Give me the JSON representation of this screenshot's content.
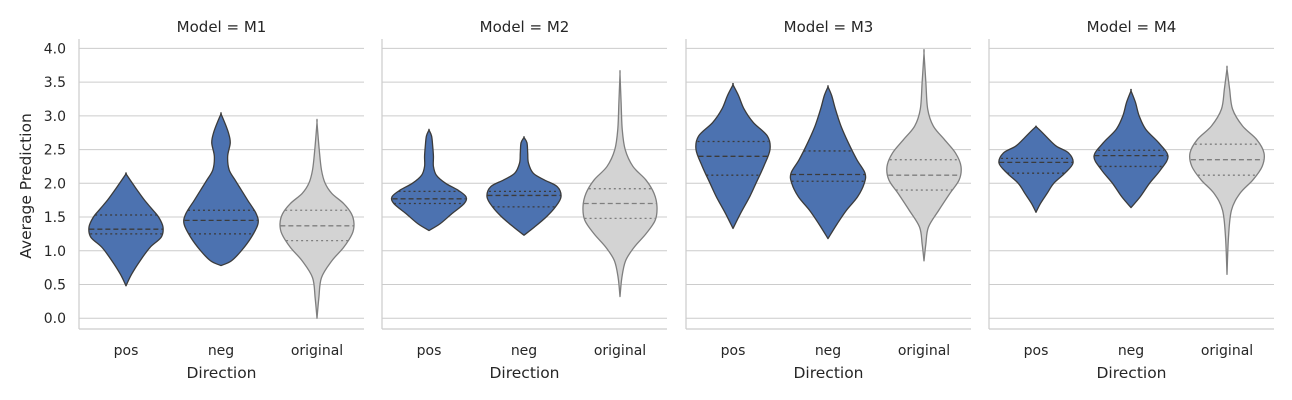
{
  "chart_data": {
    "type": "violin",
    "facet_label": "Model",
    "ylabel": "Average Prediction",
    "xlabel": "Direction",
    "ylim": [
      -0.15,
      4.15
    ],
    "yticks": [
      "0.0",
      "0.5",
      "1.0",
      "1.5",
      "2.0",
      "2.5",
      "3.0",
      "3.5",
      "4.0"
    ],
    "categories": [
      "pos",
      "neg",
      "original"
    ],
    "grid": "horizontal",
    "colors": {
      "pos": "#4c72b0",
      "neg": "#4c72b0",
      "original": "#d3d3d3",
      "outline_dark": "#3b3b3b",
      "outline_light": "#7f7f7f",
      "grid": "#cccccc",
      "spine": "#cccccc"
    },
    "panels": [
      {
        "title": "Model = M1",
        "violins": [
          {
            "category": "pos",
            "min": 0.48,
            "q1": 1.25,
            "median": 1.32,
            "q3": 1.53,
            "max": 2.14,
            "profile": [
              [
                0.48,
                0
              ],
              [
                0.65,
                0.15
              ],
              [
                0.85,
                0.38
              ],
              [
                1.05,
                0.65
              ],
              [
                1.2,
                0.95
              ],
              [
                1.35,
                1
              ],
              [
                1.5,
                0.88
              ],
              [
                1.62,
                0.7
              ],
              [
                1.75,
                0.5
              ],
              [
                1.9,
                0.3
              ],
              [
                2.02,
                0.15
              ],
              [
                2.14,
                0
              ]
            ]
          },
          {
            "category": "neg",
            "min": 0.78,
            "q1": 1.25,
            "median": 1.45,
            "q3": 1.6,
            "max": 3.03,
            "profile": [
              [
                0.78,
                0
              ],
              [
                0.85,
                0.28
              ],
              [
                1.0,
                0.55
              ],
              [
                1.2,
                0.82
              ],
              [
                1.4,
                1
              ],
              [
                1.55,
                0.95
              ],
              [
                1.75,
                0.72
              ],
              [
                1.9,
                0.55
              ],
              [
                2.05,
                0.38
              ],
              [
                2.2,
                0.22
              ],
              [
                2.4,
                0.18
              ],
              [
                2.6,
                0.25
              ],
              [
                2.75,
                0.2
              ],
              [
                2.9,
                0.1
              ],
              [
                3.03,
                0
              ]
            ]
          },
          {
            "category": "original",
            "min": 0.0,
            "q1": 1.15,
            "median": 1.37,
            "q3": 1.6,
            "max": 2.9,
            "profile": [
              [
                0.0,
                0
              ],
              [
                0.3,
                0.05
              ],
              [
                0.6,
                0.12
              ],
              [
                0.85,
                0.4
              ],
              [
                1.05,
                0.72
              ],
              [
                1.25,
                0.95
              ],
              [
                1.4,
                1
              ],
              [
                1.55,
                0.93
              ],
              [
                1.7,
                0.72
              ],
              [
                1.85,
                0.4
              ],
              [
                2.0,
                0.22
              ],
              [
                2.2,
                0.12
              ],
              [
                2.5,
                0.06
              ],
              [
                2.9,
                0
              ]
            ]
          }
        ]
      },
      {
        "title": "Model = M2",
        "violins": [
          {
            "category": "pos",
            "min": 1.3,
            "q1": 1.7,
            "median": 1.77,
            "q3": 1.88,
            "max": 2.79,
            "profile": [
              [
                1.3,
                0
              ],
              [
                1.4,
                0.3
              ],
              [
                1.55,
                0.62
              ],
              [
                1.7,
                0.95
              ],
              [
                1.8,
                1
              ],
              [
                1.9,
                0.78
              ],
              [
                2.0,
                0.45
              ],
              [
                2.12,
                0.2
              ],
              [
                2.25,
                0.12
              ],
              [
                2.4,
                0.12
              ],
              [
                2.55,
                0.1
              ],
              [
                2.7,
                0.07
              ],
              [
                2.79,
                0
              ]
            ]
          },
          {
            "category": "neg",
            "min": 1.23,
            "q1": 1.65,
            "median": 1.82,
            "q3": 1.88,
            "max": 2.68,
            "profile": [
              [
                1.23,
                0
              ],
              [
                1.35,
                0.28
              ],
              [
                1.5,
                0.6
              ],
              [
                1.65,
                0.85
              ],
              [
                1.8,
                1
              ],
              [
                1.95,
                0.9
              ],
              [
                2.05,
                0.55
              ],
              [
                2.15,
                0.25
              ],
              [
                2.3,
                0.12
              ],
              [
                2.45,
                0.1
              ],
              [
                2.6,
                0.08
              ],
              [
                2.68,
                0
              ]
            ]
          },
          {
            "category": "original",
            "min": 0.32,
            "q1": 1.48,
            "median": 1.7,
            "q3": 1.92,
            "max": 3.62,
            "profile": [
              [
                0.32,
                0
              ],
              [
                0.6,
                0.05
              ],
              [
                0.85,
                0.15
              ],
              [
                1.05,
                0.38
              ],
              [
                1.25,
                0.7
              ],
              [
                1.45,
                0.95
              ],
              [
                1.65,
                1
              ],
              [
                1.85,
                0.92
              ],
              [
                2.05,
                0.7
              ],
              [
                2.25,
                0.35
              ],
              [
                2.5,
                0.14
              ],
              [
                2.8,
                0.06
              ],
              [
                3.2,
                0.03
              ],
              [
                3.62,
                0
              ]
            ]
          }
        ]
      },
      {
        "title": "Model = M3",
        "violins": [
          {
            "category": "pos",
            "min": 1.33,
            "q1": 2.12,
            "median": 2.4,
            "q3": 2.62,
            "max": 3.46,
            "profile": [
              [
                1.33,
                0
              ],
              [
                1.55,
                0.2
              ],
              [
                1.8,
                0.45
              ],
              [
                2.0,
                0.62
              ],
              [
                2.25,
                0.83
              ],
              [
                2.5,
                1
              ],
              [
                2.7,
                0.93
              ],
              [
                2.9,
                0.55
              ],
              [
                3.1,
                0.3
              ],
              [
                3.3,
                0.15
              ],
              [
                3.46,
                0
              ]
            ]
          },
          {
            "category": "neg",
            "min": 1.18,
            "q1": 2.03,
            "median": 2.13,
            "q3": 2.48,
            "max": 3.43,
            "profile": [
              [
                1.18,
                0
              ],
              [
                1.4,
                0.25
              ],
              [
                1.6,
                0.5
              ],
              [
                1.8,
                0.8
              ],
              [
                2.0,
                0.98
              ],
              [
                2.15,
                1
              ],
              [
                2.35,
                0.78
              ],
              [
                2.6,
                0.55
              ],
              [
                2.85,
                0.35
              ],
              [
                3.1,
                0.2
              ],
              [
                3.3,
                0.1
              ],
              [
                3.43,
                0
              ]
            ]
          },
          {
            "category": "original",
            "min": 0.85,
            "q1": 1.9,
            "median": 2.12,
            "q3": 2.35,
            "max": 3.93,
            "profile": [
              [
                0.85,
                0
              ],
              [
                1.1,
                0.05
              ],
              [
                1.35,
                0.12
              ],
              [
                1.6,
                0.4
              ],
              [
                1.85,
                0.7
              ],
              [
                2.05,
                0.95
              ],
              [
                2.25,
                1
              ],
              [
                2.45,
                0.85
              ],
              [
                2.65,
                0.55
              ],
              [
                2.85,
                0.25
              ],
              [
                3.1,
                0.1
              ],
              [
                3.5,
                0.05
              ],
              [
                3.93,
                0
              ]
            ]
          }
        ]
      },
      {
        "title": "Model = M4",
        "violins": [
          {
            "category": "pos",
            "min": 1.57,
            "q1": 2.15,
            "median": 2.31,
            "q3": 2.37,
            "max": 2.84,
            "profile": [
              [
                1.57,
                0
              ],
              [
                1.7,
                0.12
              ],
              [
                1.85,
                0.3
              ],
              [
                2.0,
                0.48
              ],
              [
                2.15,
                0.78
              ],
              [
                2.3,
                1
              ],
              [
                2.45,
                0.88
              ],
              [
                2.55,
                0.55
              ],
              [
                2.68,
                0.3
              ],
              [
                2.78,
                0.12
              ],
              [
                2.84,
                0
              ]
            ]
          },
          {
            "category": "neg",
            "min": 1.64,
            "q1": 2.25,
            "median": 2.41,
            "q3": 2.49,
            "max": 3.37,
            "profile": [
              [
                1.64,
                0
              ],
              [
                1.8,
                0.25
              ],
              [
                2.0,
                0.5
              ],
              [
                2.2,
                0.8
              ],
              [
                2.4,
                1
              ],
              [
                2.6,
                0.75
              ],
              [
                2.8,
                0.4
              ],
              [
                3.0,
                0.22
              ],
              [
                3.2,
                0.12
              ],
              [
                3.37,
                0
              ]
            ]
          },
          {
            "category": "original",
            "min": 0.65,
            "q1": 2.12,
            "median": 2.35,
            "q3": 2.58,
            "max": 3.7,
            "profile": [
              [
                0.65,
                0
              ],
              [
                1.2,
                0.04
              ],
              [
                1.6,
                0.12
              ],
              [
                1.85,
                0.35
              ],
              [
                2.05,
                0.7
              ],
              [
                2.25,
                0.95
              ],
              [
                2.45,
                1
              ],
              [
                2.65,
                0.8
              ],
              [
                2.85,
                0.42
              ],
              [
                3.1,
                0.15
              ],
              [
                3.4,
                0.07
              ],
              [
                3.7,
                0
              ]
            ]
          }
        ]
      }
    ]
  }
}
